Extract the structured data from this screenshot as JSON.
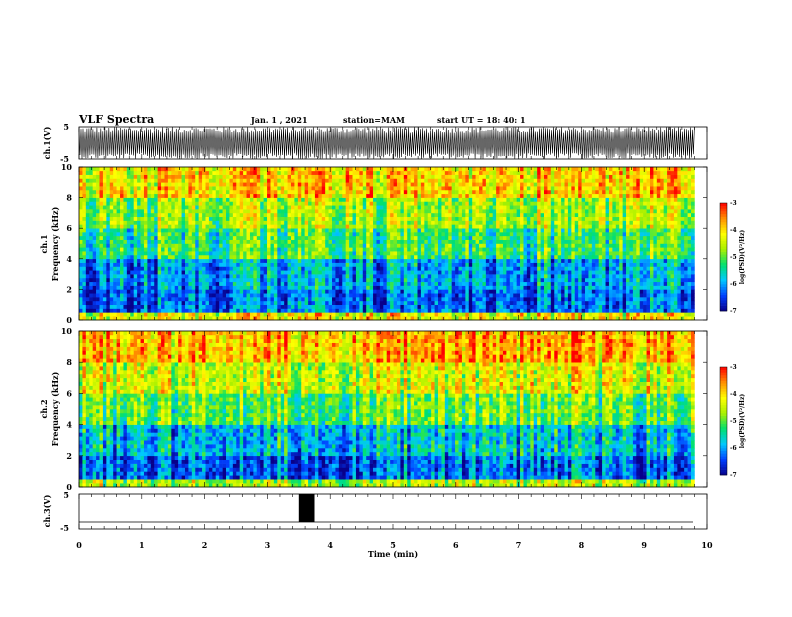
{
  "header": {
    "title": "VLF Spectra",
    "date": "Jan. 1 , 2021",
    "station": "station=MAM",
    "start": "start UT =   18: 40: 1"
  },
  "colors": {
    "spectrogram_scale": [
      "#08008a",
      "#0040ff",
      "#00c8ff",
      "#00e070",
      "#a8f000",
      "#ffff00",
      "#ff9000",
      "#ff0000"
    ],
    "waveform": "#000000"
  },
  "chart_data": [
    {
      "type": "line",
      "name": "ch1-waveform",
      "ylabel": "ch.1(V)",
      "yticks": [
        "5",
        "-5"
      ],
      "ylim": [
        -5,
        5
      ],
      "xlim": [
        0,
        10
      ],
      "note_values": "dense oscillating waveform spanning roughly -5 to 5 V from t=0 to ~9.8 min"
    },
    {
      "type": "heatmap",
      "name": "ch1-spectrogram",
      "ylabel_line1": "ch.1",
      "ylabel_line2": "Frequency (kHz)",
      "yticks": [
        "0",
        "2",
        "4",
        "6",
        "8",
        "10"
      ],
      "ylim": [
        0,
        10
      ],
      "xlim": [
        0,
        10
      ],
      "data_extent_min": 9.8,
      "colorbar": {
        "label": "log(PSD)(V²/Hz)",
        "ticks": [
          "-3",
          "-4",
          "-5",
          "-6",
          "-7"
        ],
        "range": [
          -7,
          -3
        ]
      },
      "level_by_band": [
        {
          "freq_khz": [
            0.0,
            0.5
          ],
          "log_psd": -4.2
        },
        {
          "freq_khz": [
            0.5,
            2.0
          ],
          "log_psd": -6.3
        },
        {
          "freq_khz": [
            2.0,
            4.0
          ],
          "log_psd": -6.0
        },
        {
          "freq_khz": [
            4.0,
            6.0
          ],
          "log_psd": -5.2
        },
        {
          "freq_khz": [
            6.0,
            8.0
          ],
          "log_psd": -4.7
        },
        {
          "freq_khz": [
            8.0,
            10.0
          ],
          "log_psd": -4.0
        }
      ]
    },
    {
      "type": "heatmap",
      "name": "ch2-spectrogram",
      "ylabel_line1": "ch.2",
      "ylabel_line2": "Frequency (kHz)",
      "yticks": [
        "0",
        "2",
        "4",
        "6",
        "8",
        "10"
      ],
      "ylim": [
        0,
        10
      ],
      "xlim": [
        0,
        10
      ],
      "data_extent_min": 9.8,
      "colorbar": {
        "label": "log(PSD)(V²/Hz)",
        "ticks": [
          "-3",
          "-4",
          "-5",
          "-6",
          "-7"
        ],
        "range": [
          -7,
          -3
        ]
      },
      "level_by_band": [
        {
          "freq_khz": [
            0.0,
            0.5
          ],
          "log_psd": -4.6
        },
        {
          "freq_khz": [
            0.5,
            2.0
          ],
          "log_psd": -6.3
        },
        {
          "freq_khz": [
            2.0,
            4.0
          ],
          "log_psd": -5.8
        },
        {
          "freq_khz": [
            4.0,
            6.0
          ],
          "log_psd": -5.0
        },
        {
          "freq_khz": [
            6.0,
            8.0
          ],
          "log_psd": -4.4
        },
        {
          "freq_khz": [
            8.0,
            10.0
          ],
          "log_psd": -3.8
        }
      ]
    },
    {
      "type": "line",
      "name": "ch3-waveform",
      "ylabel": "ch.3(V)",
      "yticks": [
        "5",
        "-5"
      ],
      "ylim": [
        -5,
        5
      ],
      "xlim": [
        0,
        10
      ],
      "baseline_v": -3,
      "pulse": {
        "x_start_min": 3.5,
        "x_end_min": 3.75,
        "v_low": -3,
        "v_high": 5
      },
      "xlabel": "Time (min)",
      "xticks": [
        "0",
        "1",
        "2",
        "3",
        "4",
        "5",
        "6",
        "7",
        "8",
        "9",
        "10"
      ]
    }
  ]
}
